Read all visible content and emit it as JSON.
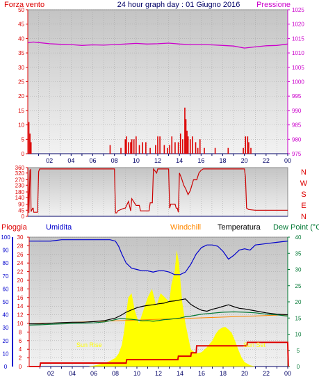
{
  "header": {
    "wind_title": "Forza vento",
    "date_title": "24 hour graph day : 01 Giugno 2016",
    "pressure_title": "Pressione"
  },
  "colors": {
    "wind": "#dd0000",
    "pressure": "#cc00cc",
    "direction": "#cc0000",
    "rain": "#dd0000",
    "humidity": "#0000cc",
    "windchill": "#ff8800",
    "temperature": "#000000",
    "dewpoint": "#007733",
    "solar": "#ffff00",
    "navy": "#000066"
  },
  "panels": {
    "wind_pressure": {
      "left_ticks": [
        "0",
        "5",
        "10",
        "15",
        "20",
        "25",
        "30",
        "35",
        "40",
        "45",
        "50"
      ],
      "right_ticks": [
        "975",
        "980",
        "985",
        "990",
        "995",
        "1000",
        "1005",
        "1010",
        "1015",
        "1020",
        "1025"
      ],
      "time_ticks": [
        "02",
        "04",
        "06",
        "08",
        "10",
        "12",
        "14",
        "16",
        "18",
        "20",
        "22",
        "00"
      ]
    },
    "direction": {
      "left_ticks": [
        "0",
        "45",
        "90",
        "140",
        "180",
        "230",
        "270",
        "320",
        "360"
      ],
      "compass": [
        "N",
        "W",
        "S",
        "E",
        "N"
      ]
    },
    "temperature": {
      "legend": {
        "rain": "Pioggia",
        "humidity": "Umidita",
        "windchill": "Windchill",
        "temperature": "Temperatura",
        "dewpoint": "Dew Point (°C"
      },
      "rain_ticks": [
        "0",
        "2",
        "4",
        "6",
        "8",
        "10",
        "12",
        "14",
        "16",
        "18",
        "20",
        "22",
        "24",
        "26",
        "28",
        "30"
      ],
      "humidity_ticks": [
        "0",
        "10",
        "20",
        "30",
        "40",
        "50",
        "60",
        "70",
        "80",
        "90",
        "100"
      ],
      "temp_ticks": [
        "0",
        "5",
        "10",
        "15",
        "20",
        "25",
        "30",
        "35",
        "40"
      ],
      "annotations": {
        "sunrise": "Sun Rise",
        "sunset": "Sun Set"
      },
      "time_ticks": [
        "02",
        "04",
        "06",
        "08",
        "10",
        "12",
        "14",
        "16",
        "18",
        "20",
        "22",
        "00"
      ]
    }
  },
  "chart_data": [
    {
      "type": "line",
      "title": "24 hour graph day : 01 Giugno 2016",
      "xlabel": "",
      "x_unit": "hour of day",
      "xlim": [
        0,
        24
      ],
      "series": [
        {
          "name": "Pressione",
          "axis": "right",
          "ylim": [
            975,
            1025
          ],
          "x": [
            0,
            0.5,
            1,
            2,
            3,
            4,
            5,
            6,
            7,
            8,
            9,
            10,
            11,
            12,
            13,
            14,
            15,
            16,
            17,
            18,
            19,
            20,
            21,
            22,
            23,
            24
          ],
          "values": [
            1013.5,
            1013.8,
            1013.6,
            1013.2,
            1013.0,
            1012.9,
            1012.6,
            1012.8,
            1012.7,
            1012.9,
            1013.1,
            1013.3,
            1013.1,
            1013.2,
            1013.4,
            1013.1,
            1012.9,
            1012.9,
            1012.8,
            1012.6,
            1012.4,
            1011.7,
            1012.1,
            1012.5,
            1012.6,
            1013.1
          ]
        },
        {
          "name": "Forza vento",
          "type": "bar",
          "axis": "left",
          "ylim": [
            0,
            50
          ],
          "x": [
            0.1,
            0.2,
            0.3,
            7.6,
            8.6,
            9.0,
            9.1,
            9.3,
            9.5,
            9.6,
            9.8,
            10.0,
            10.3,
            10.6,
            10.9,
            11.3,
            11.8,
            12.0,
            12.2,
            12.6,
            12.9,
            13.1,
            13.3,
            13.6,
            13.9,
            14.1,
            14.3,
            14.5,
            14.6,
            14.7,
            14.8,
            15.0,
            15.2,
            15.5,
            15.7,
            15.9,
            16.3,
            17.3,
            18.5,
            19.9,
            20.1,
            20.3,
            20.4,
            20.6
          ],
          "values": [
            11,
            7,
            4,
            3,
            2,
            5,
            6,
            4,
            4,
            5,
            5,
            6,
            3,
            4,
            4,
            2,
            3,
            6,
            6,
            3,
            2,
            3,
            6,
            4,
            4,
            7,
            5,
            16,
            12,
            8,
            6,
            5,
            6,
            4,
            2,
            5,
            2,
            2,
            2,
            2,
            6,
            6,
            4,
            2
          ]
        }
      ]
    },
    {
      "type": "line",
      "title": "",
      "xlim": [
        0,
        24
      ],
      "ylim": [
        0,
        360
      ],
      "series": [
        {
          "name": "",
          "x": [
            0,
            0.1,
            0.2,
            0.25,
            0.3,
            0.45,
            0.5,
            0.55,
            0.9,
            1.0,
            1.1,
            8.0,
            8.1,
            8.2,
            8.3,
            8.9,
            9.0,
            9.3,
            9.5,
            9.6,
            10.0,
            10.3,
            10.4,
            11.2,
            11.3,
            11.5,
            11.6,
            11.9,
            12.0,
            12.1,
            13.0,
            13.1,
            13.2,
            13.6,
            13.7,
            13.8,
            13.9,
            14.0,
            14.2,
            14.4,
            14.6,
            14.8,
            15.0,
            15.3,
            15.6,
            15.8,
            16.0,
            16.2,
            16.4,
            17.0,
            18.0,
            19.0,
            20.0,
            20.1,
            20.2,
            20.4,
            21.0,
            22.0,
            23.0,
            24.0
          ],
          "values": [
            355,
            25,
            340,
            345,
            35,
            60,
            60,
            30,
            30,
            330,
            350,
            350,
            25,
            25,
            40,
            60,
            60,
            110,
            40,
            130,
            80,
            80,
            40,
            40,
            100,
            100,
            350,
            320,
            350,
            350,
            350,
            60,
            90,
            90,
            60,
            60,
            30,
            320,
            280,
            230,
            200,
            160,
            190,
            270,
            270,
            320,
            340,
            350,
            350,
            350,
            350,
            350,
            350,
            290,
            60,
            50,
            45,
            45,
            45,
            45
          ]
        }
      ]
    },
    {
      "type": "line",
      "title": "",
      "xlim": [
        0,
        24
      ],
      "series": [
        {
          "name": "Umidita",
          "axis": "humidity",
          "ylim": [
            0,
            100
          ],
          "x": [
            0,
            1,
            2,
            3,
            4,
            5,
            6,
            7,
            7.5,
            8,
            8.3,
            8.6,
            9,
            9.5,
            10,
            10.5,
            11,
            11.5,
            12,
            12.5,
            13,
            13.5,
            14,
            14.5,
            15,
            15.5,
            16,
            16.5,
            17,
            17.5,
            18,
            18.5,
            19,
            19.5,
            20,
            20.5,
            21,
            22,
            23,
            24
          ],
          "values": [
            97,
            97,
            97,
            98,
            98,
            98,
            98,
            98,
            98,
            97,
            93,
            87,
            80,
            76,
            75,
            74,
            74,
            73,
            74,
            74,
            73,
            71,
            71,
            73,
            79,
            87,
            92,
            94,
            94,
            93,
            89,
            83,
            86,
            90,
            91,
            90,
            94,
            95,
            96,
            97
          ]
        },
        {
          "name": "Temperatura",
          "axis": "temp",
          "ylim": [
            0,
            40
          ],
          "x": [
            0,
            1,
            2,
            3,
            4,
            5,
            6,
            7,
            8,
            8.5,
            9,
            9.5,
            10,
            10.5,
            11,
            11.5,
            12,
            12.5,
            13,
            13.5,
            14,
            14.5,
            15,
            15.5,
            16,
            16.5,
            17,
            17.5,
            18,
            18.5,
            19,
            19.5,
            20,
            21,
            22,
            23,
            24
          ],
          "values": [
            13.2,
            13.2,
            13.4,
            13.6,
            13.7,
            13.7,
            13.9,
            14.2,
            15.0,
            15.8,
            16.8,
            17.5,
            18.2,
            18.6,
            18.9,
            19.1,
            19.4,
            19.6,
            20.1,
            20.3,
            20.6,
            20.9,
            19.2,
            18.2,
            17.4,
            17.1,
            17.7,
            18.1,
            18.6,
            19.1,
            18.5,
            18.0,
            17.8,
            17.2,
            16.6,
            16.2,
            16.0
          ]
        },
        {
          "name": "Dew Point (°C",
          "axis": "temp",
          "ylim": [
            0,
            40
          ],
          "x": [
            0,
            1,
            2,
            3,
            4,
            5,
            6,
            7,
            8,
            8.5,
            9,
            9.5,
            10,
            10.5,
            11,
            11.5,
            12,
            12.5,
            13,
            13.5,
            14,
            14.5,
            15,
            15.5,
            16,
            17,
            18,
            19,
            20,
            21,
            22,
            23,
            24
          ],
          "values": [
            12.8,
            12.9,
            13.1,
            13.2,
            13.3,
            13.4,
            13.5,
            13.8,
            14.5,
            14.9,
            14.7,
            14.6,
            14.4,
            14.1,
            14.2,
            14.0,
            14.2,
            14.5,
            14.6,
            14.8,
            15.0,
            15.4,
            15.6,
            15.9,
            16.2,
            16.5,
            16.8,
            16.9,
            16.8,
            16.6,
            16.2,
            16.0,
            15.6
          ]
        },
        {
          "name": "Windchill",
          "axis": "temp",
          "ylim": [
            0,
            40
          ],
          "x": [
            0,
            24
          ],
          "values": [
            13.2,
            16.0
          ]
        },
        {
          "name": "Pioggia",
          "axis": "rain",
          "ylim": [
            0,
            30
          ],
          "x": [
            0,
            1.0,
            1.05,
            9.0,
            9.05,
            13.8,
            13.85,
            15.0,
            15.05,
            15.5,
            15.55,
            20.2,
            20.25,
            24.0,
            24.05
          ],
          "values": [
            0,
            0,
            0.8,
            0.8,
            1.6,
            1.6,
            2.4,
            2.4,
            3.2,
            3.2,
            4.8,
            4.8,
            5.6,
            5.6,
            0
          ]
        },
        {
          "name": "",
          "type": "area",
          "axis": "rain",
          "ylim": [
            0,
            30
          ],
          "x": [
            0,
            5.5,
            6,
            6.5,
            7,
            7.5,
            8,
            8.3,
            8.6,
            8.8,
            9.0,
            9.2,
            9.5,
            9.8,
            10.2,
            10.6,
            11,
            11.4,
            11.8,
            12.2,
            12.6,
            13,
            13.2,
            13.5,
            13.7,
            13.9,
            14.2,
            14.5,
            15,
            15.5,
            16,
            16.5,
            17,
            17.3,
            17.6,
            17.9,
            18.2,
            18.5,
            18.8,
            19.1,
            19.4,
            19.7,
            20,
            20.5,
            21,
            24
          ],
          "values": [
            0,
            0,
            0.2,
            0.5,
            0.8,
            1.3,
            2.0,
            3,
            5,
            8,
            12,
            16,
            17,
            13,
            10,
            13,
            16,
            18,
            14,
            17,
            16,
            15,
            19,
            22,
            27,
            24,
            15,
            10,
            4,
            3,
            3.3,
            4.5,
            6,
            7.5,
            8.5,
            9,
            9.2,
            8.6,
            7.8,
            6,
            4,
            2.2,
            1,
            0.3,
            0,
            0
          ]
        }
      ]
    }
  ]
}
